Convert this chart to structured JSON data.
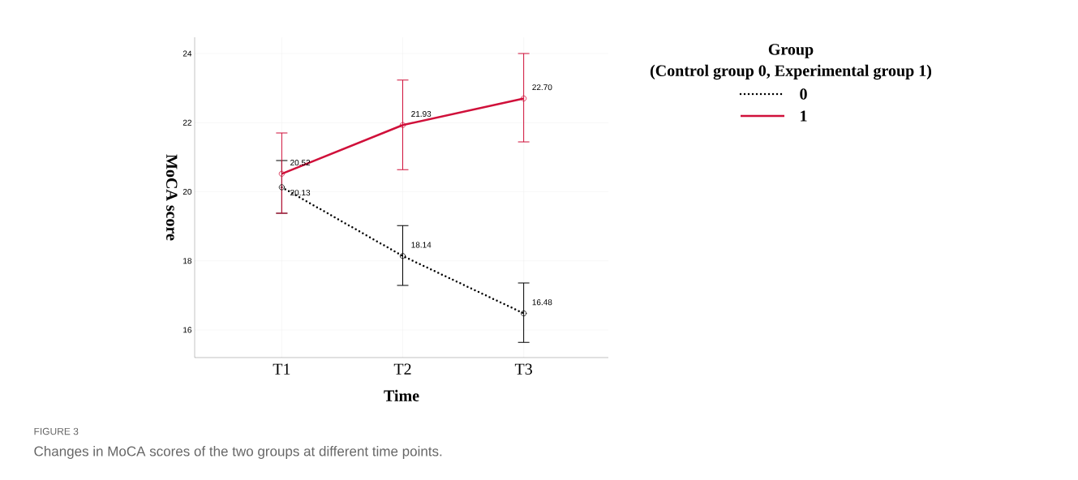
{
  "chart_data": {
    "type": "line",
    "xlabel": "Time",
    "ylabel": "MoCA score",
    "legend_title": "Group",
    "categories": [
      "T1",
      "T2",
      "T3"
    ],
    "series": [
      {
        "name": "0",
        "color": "#000000",
        "line_style": "dotted",
        "values": [
          20.13,
          18.14,
          16.48
        ],
        "value_labels": [
          "20.13",
          "18.14",
          "16.48"
        ],
        "errors": [
          [
            19.38,
            20.9
          ],
          [
            17.29,
            19.02
          ],
          [
            15.64,
            17.36
          ]
        ]
      },
      {
        "name": "1",
        "color": "#d0103a",
        "line_style": "solid",
        "values": [
          20.52,
          21.93,
          22.7
        ],
        "value_labels": [
          "20.52",
          "21.93",
          "22.70"
        ],
        "errors": [
          [
            19.38,
            21.7
          ],
          [
            20.64,
            23.23
          ],
          [
            21.44,
            24.0
          ]
        ]
      }
    ],
    "ylim": [
      15.2,
      24.47
    ],
    "yticks": [
      16,
      18,
      20,
      22,
      24
    ],
    "grid": true,
    "marker": "circle",
    "legend": "right",
    "annotations": [
      "(Control group 0, Experimental group 1)",
      "FIGURE 3",
      "Changes in MoCA scores of the two groups at different time points."
    ]
  }
}
